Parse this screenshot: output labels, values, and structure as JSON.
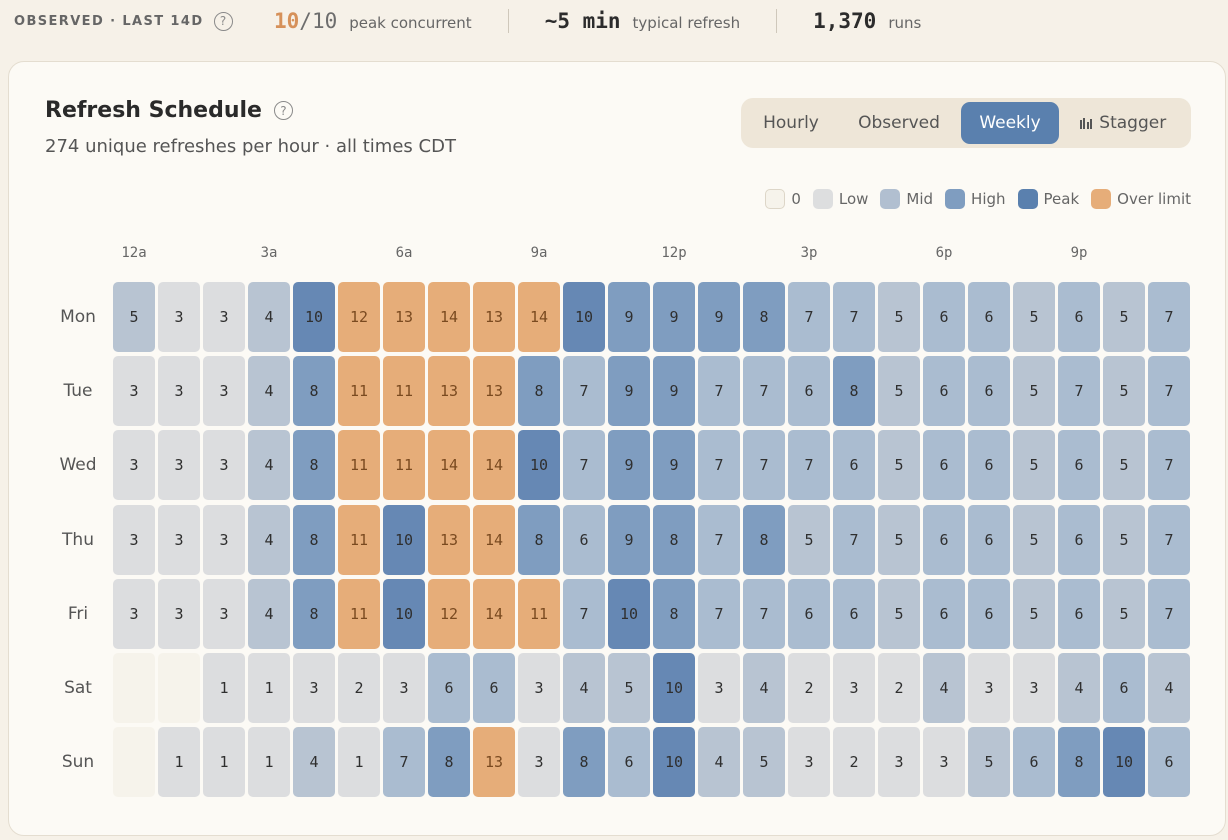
{
  "stats": {
    "observed_label": "OBSERVED · LAST 14D",
    "peak_value": "10",
    "peak_limit": "/10",
    "peak_label": "peak concurrent",
    "refresh_value": "~5 min",
    "refresh_label": "typical refresh",
    "runs_value": "1,370",
    "runs_label": "runs"
  },
  "card": {
    "title": "Refresh Schedule",
    "subtitle": "274 unique refreshes per hour · all times CDT"
  },
  "tabs": [
    {
      "label": "Hourly",
      "active": false
    },
    {
      "label": "Observed",
      "active": false
    },
    {
      "label": "Weekly",
      "active": true
    },
    {
      "label": "Stagger",
      "active": false
    }
  ],
  "legend": [
    {
      "label": "0",
      "color": "#f6f3eb"
    },
    {
      "label": "Low",
      "color": "#dddedf"
    },
    {
      "label": "Mid",
      "color": "#b1bfd0"
    },
    {
      "label": "High",
      "color": "#7f9dc0"
    },
    {
      "label": "Peak",
      "color": "#5a80ae"
    },
    {
      "label": "Over limit",
      "color": "#e6ad79"
    }
  ],
  "colors": {
    "zero": "#f6f3eb",
    "low": "#dddedf",
    "mid": "#b1bfd0",
    "high": "#7f9dc0",
    "peak": "#5a80ae",
    "over": "#e6ad79",
    "accent": "#d6915a",
    "active_tab": "#5a80ae"
  },
  "heatmap": {
    "hour_labels": [
      {
        "hour": 0,
        "label": "12a"
      },
      {
        "hour": 3,
        "label": "3a"
      },
      {
        "hour": 6,
        "label": "6a"
      },
      {
        "hour": 9,
        "label": "9a"
      },
      {
        "hour": 12,
        "label": "12p"
      },
      {
        "hour": 15,
        "label": "3p"
      },
      {
        "hour": 18,
        "label": "6p"
      },
      {
        "hour": 21,
        "label": "9p"
      }
    ],
    "concurrency_limit": 10,
    "days": [
      {
        "label": "Mon",
        "values": [
          5,
          3,
          3,
          4,
          10,
          12,
          13,
          14,
          13,
          14,
          10,
          9,
          9,
          9,
          8,
          7,
          7,
          5,
          6,
          6,
          5,
          6,
          5,
          7
        ]
      },
      {
        "label": "Tue",
        "values": [
          3,
          3,
          3,
          4,
          8,
          11,
          11,
          13,
          13,
          8,
          7,
          9,
          9,
          7,
          7,
          6,
          8,
          5,
          6,
          6,
          5,
          7,
          5,
          7
        ]
      },
      {
        "label": "Wed",
        "values": [
          3,
          3,
          3,
          4,
          8,
          11,
          11,
          14,
          14,
          10,
          7,
          9,
          9,
          7,
          7,
          7,
          6,
          5,
          6,
          6,
          5,
          6,
          5,
          7
        ]
      },
      {
        "label": "Thu",
        "values": [
          3,
          3,
          3,
          4,
          8,
          11,
          10,
          13,
          14,
          8,
          6,
          9,
          8,
          7,
          8,
          5,
          7,
          5,
          6,
          6,
          5,
          6,
          5,
          7
        ]
      },
      {
        "label": "Fri",
        "values": [
          3,
          3,
          3,
          4,
          8,
          11,
          10,
          12,
          14,
          11,
          7,
          10,
          8,
          7,
          7,
          6,
          6,
          5,
          6,
          6,
          5,
          6,
          5,
          7
        ]
      },
      {
        "label": "Sat",
        "values": [
          0,
          0,
          1,
          1,
          3,
          2,
          3,
          6,
          6,
          3,
          4,
          5,
          10,
          3,
          4,
          2,
          3,
          2,
          4,
          3,
          3,
          4,
          6,
          4
        ]
      },
      {
        "label": "Sun",
        "values": [
          0,
          1,
          1,
          1,
          4,
          1,
          7,
          8,
          13,
          3,
          8,
          6,
          10,
          4,
          5,
          3,
          2,
          3,
          3,
          5,
          6,
          8,
          10,
          6
        ]
      }
    ]
  }
}
